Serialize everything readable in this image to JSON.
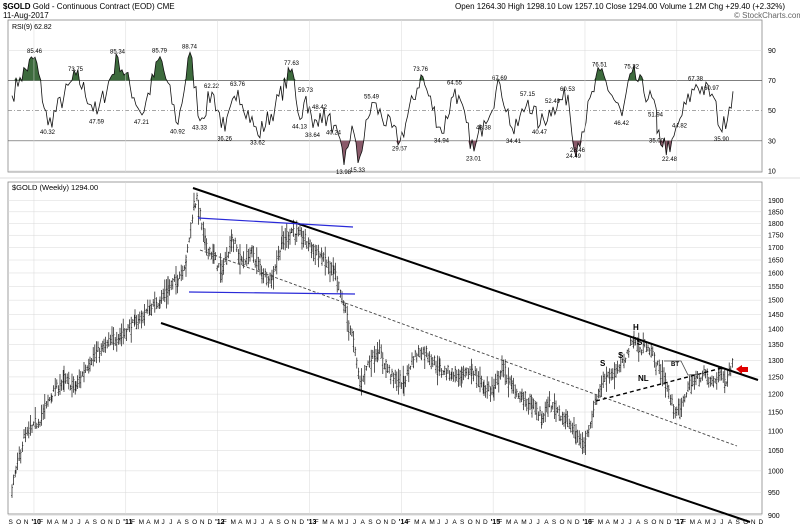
{
  "header": {
    "symbol": "$GOLD",
    "description": "Gold - Continuous Contract (EOD)",
    "exchange": "CME",
    "date": "11-Aug-2017",
    "ohlc": "Open 1264.30   High 1298.10   Low 1257.10   Close 1294.00   Volume 1.2M   Chg +29.40 (+2.32%)",
    "copyright": "© StockCharts.com"
  },
  "rsi_panel": {
    "label": "RSI(9) 62.82",
    "overbought": 70,
    "oversold": 30,
    "midline": 50,
    "axis_ticks": [
      "90",
      "70",
      "50",
      "30",
      "10"
    ],
    "peak_labels": [
      "85.46",
      "73.75",
      "85.34",
      "85.79",
      "88.74",
      "62.22",
      "63.76",
      "77.63",
      "59.73",
      "48.42",
      "55.49",
      "73.76",
      "64.55",
      "67.69",
      "57.15",
      "52.49",
      "60.53",
      "76.51",
      "75.32",
      "67.38",
      "60.97"
    ],
    "trough_labels": [
      "40.32",
      "47.59",
      "47.21",
      "40.92",
      "43.33",
      "36.26",
      "33.62",
      "44.13",
      "38.64",
      "40.24",
      "13.98",
      "15.33",
      "29.57",
      "34.94",
      "23.01",
      "43.38",
      "34.41",
      "40.47",
      "24.49",
      "28.46",
      "46.42",
      "51.94",
      "35.00",
      "22.48",
      "44.82",
      "35.90"
    ]
  },
  "price_panel": {
    "label": "$GOLD (Weekly) 1294.00",
    "y_ticks": [
      "1900",
      "1850",
      "1800",
      "1750",
      "1700",
      "1650",
      "1600",
      "1550",
      "1500",
      "1450",
      "1400",
      "1350",
      "1300",
      "1250",
      "1200",
      "1150",
      "1100",
      "1050",
      "1000",
      "950",
      "900"
    ],
    "annotations": [
      "H",
      "S",
      "S",
      "S",
      "NL",
      "BT"
    ]
  },
  "x_axis": {
    "labels": [
      "S",
      "O",
      "N",
      "'10",
      "F",
      "M",
      "A",
      "M",
      "J",
      "J",
      "A",
      "S",
      "O",
      "N",
      "D",
      "'11",
      "F",
      "M",
      "A",
      "M",
      "J",
      "J",
      "A",
      "S",
      "O",
      "N",
      "D",
      "'12",
      "F",
      "M",
      "A",
      "M",
      "J",
      "J",
      "A",
      "S",
      "O",
      "N",
      "D",
      "'13",
      "F",
      "M",
      "A",
      "M",
      "J",
      "J",
      "A",
      "S",
      "O",
      "N",
      "D",
      "'14",
      "F",
      "M",
      "A",
      "M",
      "J",
      "J",
      "A",
      "S",
      "O",
      "N",
      "D",
      "'15",
      "F",
      "M",
      "A",
      "M",
      "J",
      "J",
      "A",
      "S",
      "O",
      "N",
      "D",
      "'16",
      "F",
      "M",
      "A",
      "M",
      "J",
      "J",
      "A",
      "S",
      "O",
      "N",
      "D",
      "'17",
      "F",
      "M",
      "A",
      "M",
      "J",
      "J",
      "A",
      "S",
      "O",
      "N",
      "D"
    ]
  },
  "colors": {
    "rsi_overbought_fill": "#3d6b3d",
    "rsi_oversold_fill": "#8a5a6a",
    "channel_line": "#000000",
    "flag_line": "#2a2ad8",
    "arrow": "#e00000",
    "grid": "#d8d8d8"
  },
  "chart_data": {
    "type": "ohlc",
    "title": "$GOLD (Weekly) 1294.00",
    "ylim": [
      900,
      1950
    ],
    "y_scale": "log",
    "x": [
      "2009-09",
      "2010-06",
      "2011-01",
      "2011-09",
      "2012-05",
      "2012-10",
      "2013-06",
      "2013-12",
      "2014-03",
      "2014-11",
      "2015-05",
      "2015-12",
      "2016-03",
      "2016-07",
      "2016-10",
      "2016-12",
      "2017-03",
      "2017-06",
      "2017-08"
    ],
    "series": [
      {
        "name": "$GOLD",
        "values": [
          950,
          1230,
          1350,
          1900,
          1540,
          1790,
          1200,
          1190,
          1390,
          1150,
          1220,
          1050,
          1260,
          1370,
          1270,
          1130,
          1260,
          1230,
          1294
        ]
      }
    ],
    "rsi_series": {
      "name": "RSI(9)",
      "last": 62.82
    }
  }
}
